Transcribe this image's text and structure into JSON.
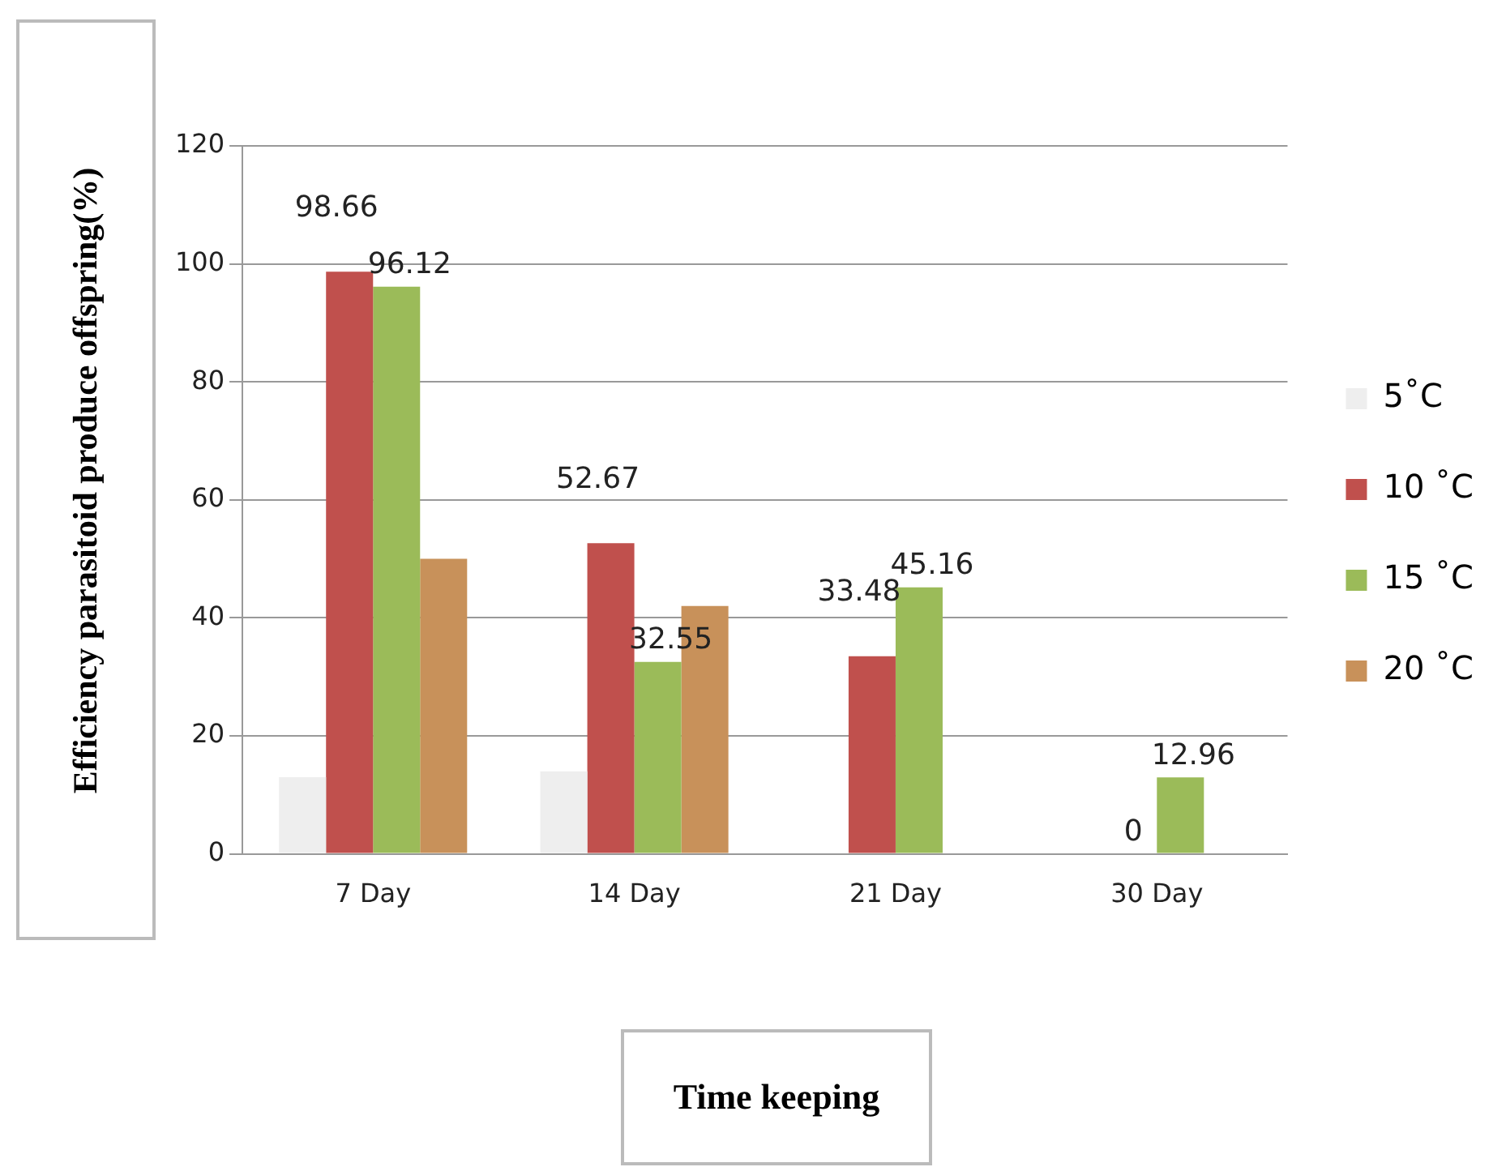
{
  "chart_data": {
    "type": "bar",
    "xlabel": "Time keeping",
    "ylabel": "Efficiency parasitoid produce offspring(%)",
    "categories": [
      "7 Day",
      "14 Day",
      "21 Day",
      "30 Day"
    ],
    "series": [
      {
        "name": "5˚C",
        "color": "#eeeeee",
        "values": [
          13,
          14,
          null,
          null
        ]
      },
      {
        "name": "10 ˚C",
        "color": "#c0504d",
        "values": [
          98.66,
          52.67,
          33.48,
          0
        ],
        "value_labels": [
          "98.66",
          "52.67",
          "33.48",
          "0"
        ]
      },
      {
        "name": "15 ˚C",
        "color": "#9bbb59",
        "values": [
          96.12,
          32.55,
          45.16,
          12.96
        ],
        "value_labels": [
          "96.12",
          "32.55",
          "45.16",
          "12.96"
        ]
      },
      {
        "name": "20 ˚C",
        "color": "#c8915a",
        "values": [
          50,
          42,
          null,
          null
        ]
      }
    ],
    "ylim": [
      0,
      120
    ],
    "yticks": [
      0,
      20,
      40,
      60,
      80,
      100,
      120
    ],
    "grid": "y",
    "legend": "right"
  }
}
